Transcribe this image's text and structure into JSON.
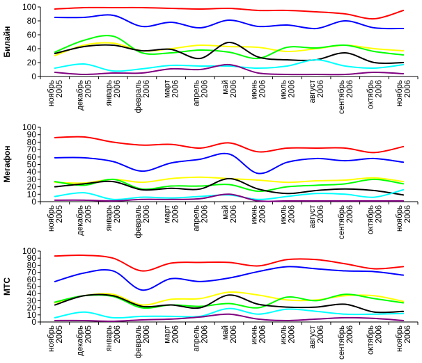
{
  "chart_data": [
    {
      "type": "line",
      "title": "Билайн",
      "ylim": [
        0,
        100
      ],
      "yticks": [
        0,
        20,
        40,
        60,
        80,
        100
      ],
      "grid": false,
      "legend": "none",
      "categories": [
        [
          "ноябрь",
          "2005"
        ],
        [
          "декабрь",
          "2005"
        ],
        [
          "январь",
          "2006"
        ],
        [
          "февраль",
          "2006"
        ],
        [
          "март",
          "2006"
        ],
        [
          "апрель",
          "2006"
        ],
        [
          "май",
          "2006"
        ],
        [
          "июнь",
          "2006"
        ],
        [
          "июль",
          "2006"
        ],
        [
          "август",
          "2006"
        ],
        [
          "сентябрь",
          "2006"
        ],
        [
          "октябрь",
          "2006"
        ],
        [
          "ноябрь",
          "2006"
        ]
      ],
      "series": [
        {
          "color": "#ff0000",
          "values": [
            97,
            99,
            99,
            99,
            98,
            97,
            98,
            95,
            95,
            93,
            90,
            83,
            95
          ]
        },
        {
          "color": "#0000ff",
          "values": [
            85,
            85,
            88,
            72,
            78,
            70,
            81,
            72,
            74,
            69,
            80,
            70,
            69
          ]
        },
        {
          "color": "#ffff00",
          "values": [
            30,
            45,
            48,
            37,
            40,
            45,
            43,
            42,
            36,
            40,
            45,
            40,
            37
          ]
        },
        {
          "color": "#00ff00",
          "values": [
            35,
            52,
            58,
            34,
            34,
            38,
            35,
            26,
            42,
            41,
            45,
            36,
            31
          ]
        },
        {
          "color": "#000000",
          "values": [
            33,
            43,
            45,
            37,
            39,
            26,
            49,
            28,
            24,
            24,
            34,
            20,
            20
          ]
        },
        {
          "color": "#00ffff",
          "values": [
            12,
            18,
            8,
            11,
            16,
            15,
            15,
            12,
            15,
            24,
            15,
            12,
            17
          ]
        },
        {
          "color": "#800080",
          "values": [
            6,
            3,
            5,
            5,
            11,
            10,
            17,
            5,
            3,
            3,
            3,
            6,
            4
          ]
        }
      ]
    },
    {
      "type": "line",
      "title": "Мегафон",
      "ylim": [
        0,
        100
      ],
      "yticks": [
        0,
        10,
        20,
        30,
        40,
        50,
        60,
        70,
        80,
        90,
        100
      ],
      "grid": false,
      "legend": "none",
      "categories": [
        [
          "ноябрь",
          "2005"
        ],
        [
          "декабрь",
          "2005"
        ],
        [
          "январь",
          "2006"
        ],
        [
          "февраль",
          "2006"
        ],
        [
          "март",
          "2006"
        ],
        [
          "апрель",
          "2006"
        ],
        [
          "май",
          "2006"
        ],
        [
          "июнь",
          "2006"
        ],
        [
          "июль",
          "2006"
        ],
        [
          "август",
          "2006"
        ],
        [
          "сентябрь",
          "2006"
        ],
        [
          "октябрь",
          "2006"
        ],
        [
          "ноябрь",
          "2006"
        ]
      ],
      "series": [
        {
          "color": "#ff0000",
          "values": [
            86,
            87,
            80,
            76,
            77,
            72,
            79,
            67,
            72,
            72,
            72,
            66,
            74
          ]
        },
        {
          "color": "#0000ff",
          "values": [
            59,
            59,
            54,
            41,
            52,
            57,
            64,
            38,
            53,
            58,
            55,
            58,
            53
          ]
        },
        {
          "color": "#ffff00",
          "values": [
            26,
            25,
            30,
            26,
            31,
            33,
            31,
            29,
            26,
            28,
            29,
            32,
            27
          ]
        },
        {
          "color": "#00ff00",
          "values": [
            27,
            22,
            30,
            17,
            21,
            21,
            23,
            14,
            20,
            22,
            24,
            30,
            24
          ]
        },
        {
          "color": "#000000",
          "values": [
            20,
            24,
            27,
            16,
            18,
            17,
            31,
            17,
            11,
            15,
            17,
            15,
            9
          ]
        },
        {
          "color": "#00ffff",
          "values": [
            7,
            12,
            3,
            6,
            5,
            7,
            9,
            3,
            7,
            11,
            10,
            6,
            16
          ]
        },
        {
          "color": "#800080",
          "values": [
            2,
            2,
            1,
            3,
            3,
            4,
            10,
            1,
            1,
            1,
            1,
            1,
            1
          ]
        }
      ]
    },
    {
      "type": "line",
      "title": "МТС",
      "ylim": [
        0,
        100
      ],
      "yticks": [
        0,
        10,
        20,
        30,
        40,
        50,
        60,
        70,
        80,
        90,
        100
      ],
      "grid": false,
      "legend": "none",
      "categories": [
        [
          "ноябрь",
          "2005"
        ],
        [
          "декабрь",
          "2005"
        ],
        [
          "январь",
          "2006"
        ],
        [
          "февраль",
          "2006"
        ],
        [
          "март",
          "2006"
        ],
        [
          "апрель",
          "2006"
        ],
        [
          "май",
          "2006"
        ],
        [
          "июнь",
          "2006"
        ],
        [
          "июль",
          "2006"
        ],
        [
          "август",
          "2006"
        ],
        [
          "сентябрь",
          "2006"
        ],
        [
          "октябрь",
          "2006"
        ],
        [
          "ноябрь",
          "2006"
        ]
      ],
      "series": [
        {
          "color": "#ff0000",
          "values": [
            93,
            94,
            90,
            72,
            83,
            84,
            84,
            79,
            88,
            88,
            82,
            75,
            78
          ]
        },
        {
          "color": "#0000ff",
          "values": [
            57,
            69,
            72,
            45,
            61,
            57,
            62,
            71,
            78,
            75,
            72,
            71,
            66
          ]
        },
        {
          "color": "#ffff00",
          "values": [
            27,
            37,
            39,
            24,
            32,
            33,
            42,
            38,
            31,
            31,
            37,
            37,
            29
          ]
        },
        {
          "color": "#00ff00",
          "values": [
            28,
            37,
            36,
            20,
            24,
            22,
            26,
            20,
            35,
            30,
            39,
            33,
            27
          ]
        },
        {
          "color": "#000000",
          "values": [
            24,
            37,
            37,
            22,
            24,
            20,
            38,
            25,
            21,
            21,
            25,
            14,
            15
          ]
        },
        {
          "color": "#00ffff",
          "values": [
            6,
            14,
            6,
            8,
            8,
            8,
            19,
            11,
            18,
            15,
            11,
            11,
            12
          ]
        },
        {
          "color": "#800080",
          "values": [
            2,
            2,
            1,
            3,
            4,
            7,
            11,
            4,
            2,
            4,
            6,
            5,
            2
          ]
        }
      ]
    }
  ]
}
